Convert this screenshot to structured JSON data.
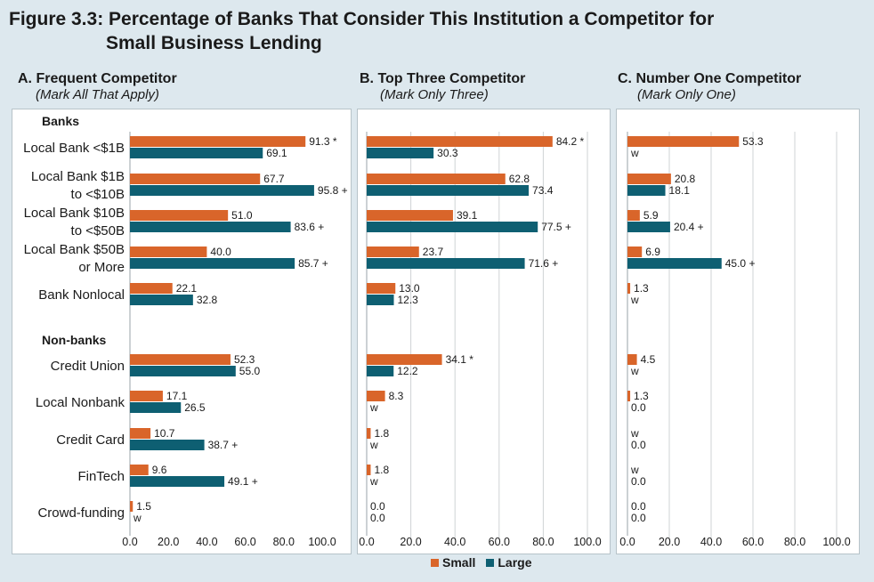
{
  "figure": {
    "title_line1": "Figure 3.3: Percentage of Banks That Consider This Institution a Competitor for",
    "title_line2": "Small Business Lending"
  },
  "legend": {
    "small_label": "Small",
    "large_label": "Large"
  },
  "colors": {
    "small": "#d9652a",
    "large": "#0e5f72",
    "background": "#dde8ee",
    "grid": "#cfd3d5"
  },
  "chart_data": [
    {
      "type": "bar",
      "orientation": "horizontal",
      "panel": "A",
      "title": "A. Frequent Competitor",
      "subtitle": "(Mark All That Apply)",
      "group_labels": [
        "Banks",
        "Non-banks"
      ],
      "categories": [
        "Local Bank <$1B",
        "Local Bank $1B to <$10B",
        "Local Bank $10B to <$50B",
        "Local Bank $50B or More",
        "Bank Nonlocal",
        "Credit Union",
        "Local Nonbank",
        "Credit Card",
        "FinTech",
        "Crowd-funding"
      ],
      "series": [
        {
          "name": "Small",
          "values": [
            91.3,
            67.7,
            51.0,
            40.0,
            22.1,
            52.3,
            17.1,
            10.7,
            9.6,
            1.5
          ],
          "labels": [
            "91.3 *",
            "67.7",
            "51.0",
            "40.0",
            "22.1",
            "52.3",
            "17.1",
            "10.7",
            "9.6",
            "1.5"
          ]
        },
        {
          "name": "Large",
          "values": [
            69.1,
            95.8,
            83.6,
            85.7,
            32.8,
            55.0,
            26.5,
            38.7,
            49.1,
            0
          ],
          "labels": [
            "69.1",
            "95.8 +",
            "83.6 +",
            "85.7 +",
            "32.8",
            "55.0",
            "26.5",
            "38.7 +",
            "49.1 +",
            "w"
          ]
        }
      ],
      "xlim": [
        0,
        100
      ],
      "xticks": [
        "0.0",
        "20.0",
        "40.0",
        "60.0",
        "80.0",
        "100.0"
      ],
      "grid": false
    },
    {
      "type": "bar",
      "orientation": "horizontal",
      "panel": "B",
      "title": "B. Top Three Competitor",
      "subtitle": "(Mark Only Three)",
      "categories": [
        "Local Bank <$1B",
        "Local Bank $1B to <$10B",
        "Local Bank $10B to <$50B",
        "Local Bank $50B or More",
        "Bank Nonlocal",
        "Credit Union",
        "Local Nonbank",
        "Credit Card",
        "FinTech",
        "Crowd-funding"
      ],
      "series": [
        {
          "name": "Small",
          "values": [
            84.2,
            62.8,
            39.1,
            23.7,
            13.0,
            34.1,
            8.3,
            1.8,
            1.8,
            0.0
          ],
          "labels": [
            "84.2 *",
            "62.8",
            "39.1",
            "23.7",
            "13.0",
            "34.1 *",
            "8.3",
            "1.8",
            "1.8",
            "0.0"
          ]
        },
        {
          "name": "Large",
          "values": [
            30.3,
            73.4,
            77.5,
            71.6,
            12.3,
            12.2,
            0,
            0,
            0,
            0.0
          ],
          "labels": [
            "30.3",
            "73.4",
            "77.5 +",
            "71.6 +",
            "12.3",
            "12.2",
            "w",
            "w",
            "w",
            "0.0"
          ]
        }
      ],
      "xlim": [
        0,
        100
      ],
      "xticks": [
        "0.0",
        "20.0",
        "40.0",
        "60.0",
        "80.0",
        "100.0"
      ],
      "grid": true
    },
    {
      "type": "bar",
      "orientation": "horizontal",
      "panel": "C",
      "title": "C. Number One Competitor",
      "subtitle": "(Mark Only One)",
      "categories": [
        "Local Bank <$1B",
        "Local Bank $1B to <$10B",
        "Local Bank $10B to <$50B",
        "Local Bank $50B or More",
        "Bank Nonlocal",
        "Credit Union",
        "Local Nonbank",
        "Credit Card",
        "FinTech",
        "Crowd-funding"
      ],
      "series": [
        {
          "name": "Small",
          "values": [
            53.3,
            20.8,
            5.9,
            6.9,
            1.3,
            4.5,
            1.3,
            0,
            0,
            0.0
          ],
          "labels": [
            "53.3",
            "20.8",
            "5.9",
            "6.9",
            "1.3",
            "4.5",
            "1.3",
            "w",
            "w",
            "0.0"
          ]
        },
        {
          "name": "Large",
          "values": [
            0,
            18.1,
            20.4,
            45.0,
            0,
            0,
            0.0,
            0.0,
            0.0,
            0.0
          ],
          "labels": [
            "w",
            "18.1",
            "20.4 +",
            "45.0 +",
            "w",
            "w",
            "0.0",
            "0.0",
            "0.0",
            "0.0"
          ]
        }
      ],
      "xlim": [
        0,
        100
      ],
      "xticks": [
        "0.0",
        "20.0",
        "40.0",
        "60.0",
        "80.0",
        "100.0"
      ],
      "grid": true
    }
  ],
  "row_labels": [
    [
      "Local Bank <$1B"
    ],
    [
      "Local Bank $1B",
      "to <$10B"
    ],
    [
      "Local Bank $10B",
      "to <$50B"
    ],
    [
      "Local Bank $50B",
      "or More"
    ],
    [
      "Bank Nonlocal"
    ],
    [
      "Credit Union"
    ],
    [
      "Local Nonbank"
    ],
    [
      "Credit Card"
    ],
    [
      "FinTech"
    ],
    [
      "Crowd-funding"
    ]
  ]
}
